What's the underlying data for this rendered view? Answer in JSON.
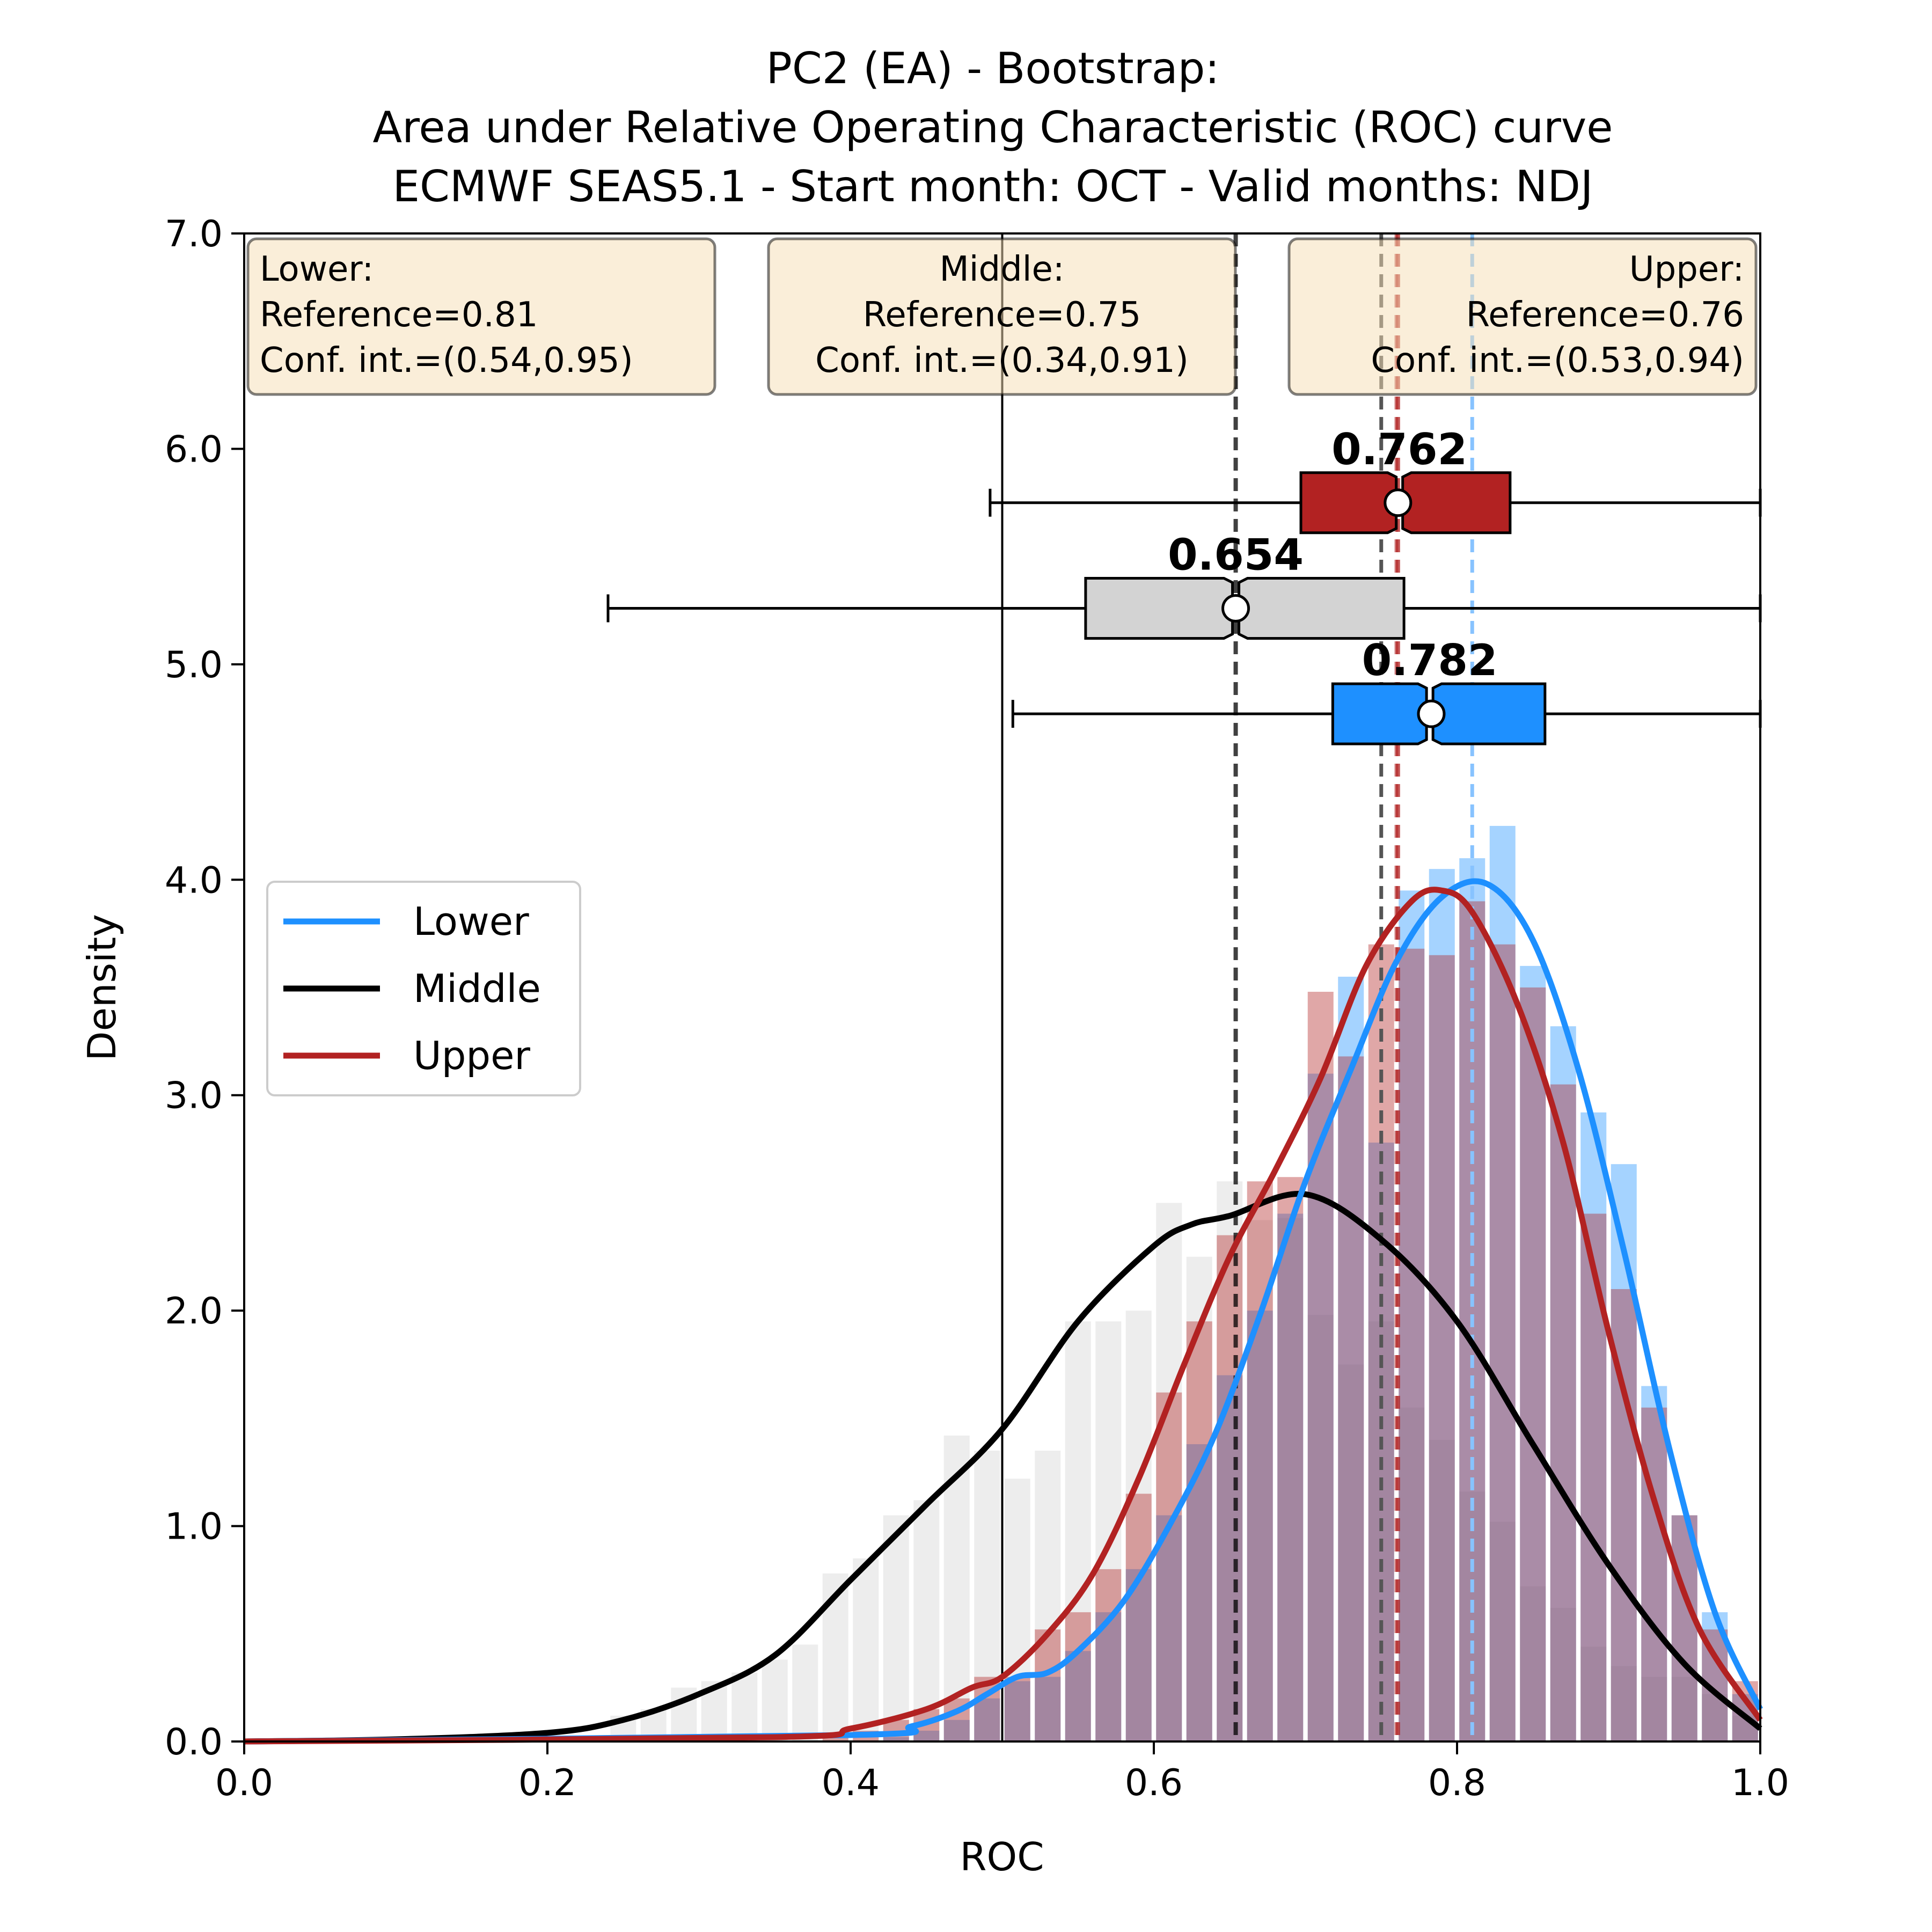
{
  "chart_data": {
    "type": "histogram-kde-boxplot",
    "title": [
      "PC2 (EA) - Bootstrap:",
      "Area under Relative Operating Characteristic (ROC) curve",
      "ECMWF SEAS5.1 - Start month: OCT - Valid months: NDJ"
    ],
    "xlabel": "ROC",
    "ylabel": "Density",
    "xlim": [
      0.0,
      1.0
    ],
    "ylim": [
      0.0,
      7.0
    ],
    "xticks": [
      "0.0",
      "0.2",
      "0.4",
      "0.6",
      "0.8",
      "1.0"
    ],
    "yticks": [
      "0.0",
      "1.0",
      "2.0",
      "3.0",
      "4.0",
      "5.0",
      "6.0",
      "7.0"
    ],
    "no_skill_line": 0.5,
    "legend": {
      "location": "center-left",
      "entries": [
        "Lower",
        "Middle",
        "Upper"
      ]
    },
    "info_boxes": [
      {
        "name": "Lower",
        "lines": [
          "Lower:",
          "Reference=0.81",
          "Conf. int.=(0.54,0.95)"
        ],
        "align": "left"
      },
      {
        "name": "Middle",
        "lines": [
          "Middle:",
          "Reference=0.75",
          "Conf. int.=(0.34,0.91)"
        ],
        "align": "center"
      },
      {
        "name": "Upper",
        "lines": [
          "Upper:",
          "Reference=0.76",
          "Conf. int.=(0.53,0.94)"
        ],
        "align": "right"
      }
    ],
    "bin_centers": [
      0.25,
      0.27,
      0.29,
      0.31,
      0.33,
      0.35,
      0.37,
      0.39,
      0.41,
      0.43,
      0.45,
      0.47,
      0.49,
      0.51,
      0.53,
      0.55,
      0.57,
      0.59,
      0.61,
      0.63,
      0.65,
      0.67,
      0.69,
      0.71,
      0.73,
      0.75,
      0.77,
      0.79,
      0.81,
      0.83,
      0.85,
      0.87,
      0.89,
      0.91,
      0.93,
      0.95,
      0.97,
      0.99
    ],
    "series": [
      {
        "name": "Lower",
        "color": "#1E90FF",
        "reference": 0.81,
        "median": 0.782,
        "median_label": "0.782",
        "mean": 0.783,
        "box": {
          "q1": 0.718,
          "q3": 0.858,
          "whisker_low": 0.507,
          "whisker_high": 1.0,
          "y": 4.77
        },
        "hist": [
          0,
          0,
          0,
          0,
          0,
          0,
          0,
          0,
          0,
          0.02,
          0.05,
          0.1,
          0.2,
          0.28,
          0.3,
          0.42,
          0.6,
          0.8,
          1.05,
          1.38,
          1.7,
          2.0,
          2.45,
          3.1,
          3.55,
          2.78,
          3.95,
          4.05,
          4.1,
          4.25,
          3.6,
          3.32,
          2.92,
          2.68,
          1.65,
          1.05,
          0.6,
          0.22
        ],
        "kde_x": [
          0.0,
          0.4,
          0.44,
          0.47,
          0.49,
          0.51,
          0.53,
          0.55,
          0.58,
          0.61,
          0.64,
          0.67,
          0.7,
          0.73,
          0.76,
          0.79,
          0.82,
          0.85,
          0.88,
          0.91,
          0.94,
          0.97,
          1.0
        ],
        "kde_y": [
          0.0,
          0.03,
          0.07,
          0.14,
          0.22,
          0.3,
          0.32,
          0.42,
          0.65,
          1.0,
          1.42,
          1.98,
          2.6,
          3.12,
          3.62,
          3.92,
          3.98,
          3.72,
          3.12,
          2.28,
          1.36,
          0.6,
          0.15
        ]
      },
      {
        "name": "Middle",
        "color": "#000000",
        "reference": 0.75,
        "median": 0.654,
        "median_label": "0.654",
        "mean": 0.654,
        "box": {
          "q1": 0.555,
          "q3": 0.765,
          "whisker_low": 0.24,
          "whisker_high": 1.0,
          "y": 5.26
        },
        "hist": [
          0.12,
          0.15,
          0.25,
          0.28,
          0.32,
          0.38,
          0.45,
          0.78,
          0.85,
          1.05,
          1.12,
          1.42,
          1.35,
          1.22,
          1.35,
          1.95,
          1.95,
          2.0,
          2.5,
          2.25,
          2.6,
          2.42,
          2.43,
          1.98,
          1.75,
          1.95,
          1.55,
          1.4,
          1.16,
          1.02,
          0.72,
          0.62,
          0.44,
          0.35,
          0.3,
          0.3,
          0.22,
          0.12
        ],
        "kde_x": [
          0.0,
          0.1,
          0.2,
          0.25,
          0.3,
          0.35,
          0.4,
          0.45,
          0.5,
          0.55,
          0.6,
          0.625,
          0.65,
          0.7,
          0.75,
          0.8,
          0.85,
          0.9,
          0.95,
          1.0
        ],
        "kde_y": [
          0.0,
          0.01,
          0.04,
          0.1,
          0.22,
          0.4,
          0.75,
          1.1,
          1.45,
          1.95,
          2.3,
          2.4,
          2.44,
          2.54,
          2.33,
          1.95,
          1.38,
          0.82,
          0.36,
          0.06
        ]
      },
      {
        "name": "Upper",
        "color": "#B22222",
        "reference": 0.76,
        "median": 0.762,
        "median_label": "0.762",
        "mean": 0.761,
        "box": {
          "q1": 0.697,
          "q3": 0.835,
          "whisker_low": 0.492,
          "whisker_high": 1.0,
          "y": 5.75
        },
        "hist": [
          0,
          0,
          0,
          0,
          0,
          0,
          0,
          0.02,
          0.05,
          0.1,
          0.15,
          0.2,
          0.3,
          0.3,
          0.52,
          0.6,
          0.8,
          1.15,
          1.62,
          1.95,
          2.35,
          2.6,
          2.62,
          3.48,
          3.18,
          3.7,
          3.68,
          3.65,
          3.9,
          3.7,
          3.5,
          3.05,
          2.45,
          2.1,
          1.55,
          1.05,
          0.52,
          0.28
        ],
        "kde_x": [
          0.0,
          0.35,
          0.4,
          0.45,
          0.48,
          0.5,
          0.53,
          0.56,
          0.59,
          0.62,
          0.65,
          0.68,
          0.71,
          0.74,
          0.77,
          0.79,
          0.81,
          0.84,
          0.87,
          0.9,
          0.93,
          0.96,
          1.0
        ],
        "kde_y": [
          0.0,
          0.02,
          0.06,
          0.15,
          0.25,
          0.3,
          0.5,
          0.78,
          1.22,
          1.75,
          2.25,
          2.65,
          3.08,
          3.6,
          3.9,
          3.95,
          3.85,
          3.42,
          2.78,
          1.9,
          1.12,
          0.52,
          0.1
        ]
      }
    ]
  }
}
